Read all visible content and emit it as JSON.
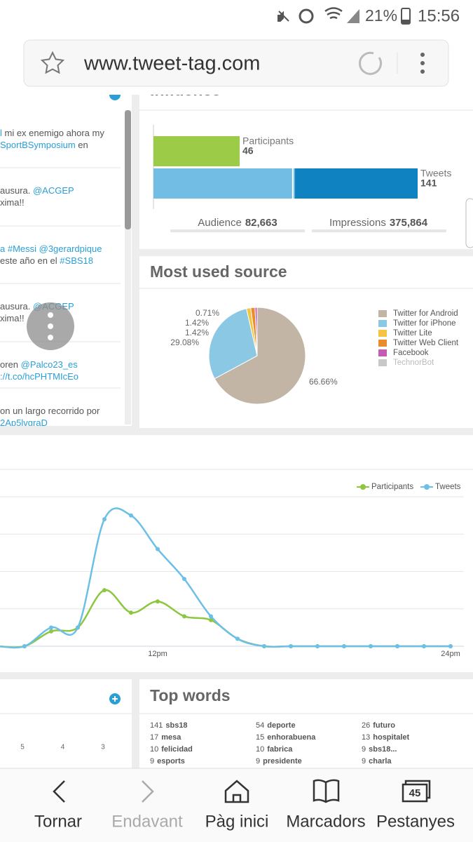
{
  "status_bar": {
    "battery": "21%",
    "time": "15:56"
  },
  "browser": {
    "url": "www.tweet-tag.com"
  },
  "tweets": [
    {
      "lines": [
        [
          "l",
          " mi ex enemigo ahora my"
        ],
        [
          "SportBSymposium",
          " en"
        ]
      ]
    },
    {
      "lines": [
        [
          "ausura. ",
          "@ACGEP"
        ],
        [
          "xima!!"
        ]
      ]
    },
    {
      "lines": [
        [
          "a #Messi @3gerardpique"
        ],
        [
          "este año en el ",
          "#SBS18"
        ]
      ]
    },
    {
      "lines": [
        [
          "ausura. ",
          "@ACGEP"
        ],
        [
          "xima!!"
        ]
      ]
    },
    {
      "lines": [
        [
          "oren ",
          "@Palco23_es"
        ],
        [
          "://t.co/hcPHTMIcEo"
        ]
      ]
    },
    {
      "lines": [
        [
          "on un largo recorrido por"
        ],
        [
          "2Ap5lvgraD"
        ]
      ]
    }
  ],
  "influence": {
    "chart_data": {
      "type": "hbar",
      "title": "Influence",
      "categories": [
        "Participants",
        "Tweets"
      ],
      "values": [
        46,
        141
      ],
      "colors": [
        "#9ccb47",
        "#72bde3"
      ],
      "xlim": [
        0,
        141
      ],
      "tweet_split": [
        74,
        67
      ],
      "tweet_split_colors": [
        "#72bde3",
        "#0f82c1"
      ]
    },
    "audience": {
      "label": "Audience",
      "value": "82,663"
    },
    "impressions": {
      "label": "Impressions",
      "value": "375,864"
    }
  },
  "source": {
    "chart_data": {
      "type": "pie",
      "title": "Most used source",
      "categories": [
        "Twitter for Android",
        "Twitter for iPhone",
        "Twitter Lite",
        "Twitter Web Client",
        "Facebook",
        "TechnorBot"
      ],
      "values": [
        66.66,
        29.08,
        1.42,
        1.42,
        0.71,
        null
      ],
      "value_labels": [
        "66.66%",
        "29.08%",
        "1.42%",
        "1.42%",
        "0.71%",
        null
      ],
      "colors": [
        "#c3b5a6",
        "#8ac8e4",
        "#f4c542",
        "#e98c2d",
        "#c45cb4",
        "#c8c8c8"
      ],
      "hidden": [
        false,
        false,
        false,
        false,
        false,
        true
      ]
    }
  },
  "activity": {
    "chart_data": {
      "type": "line",
      "categories": [
        null,
        null,
        null,
        null,
        null,
        null,
        "12pm",
        null,
        null,
        null,
        null,
        null,
        null,
        null,
        null,
        null,
        null,
        "24pm"
      ],
      "series": [
        {
          "name": "Participants",
          "color": "#8dc63f",
          "values": [
            0,
            0,
            4,
            5,
            15,
            9,
            12,
            8,
            7,
            2,
            0,
            0,
            0,
            0,
            0,
            0,
            0,
            0
          ]
        },
        {
          "name": "Tweets",
          "color": "#6cbfe6",
          "values": [
            0,
            0,
            5,
            5,
            34,
            35,
            26,
            18,
            8,
            2,
            0,
            0,
            0,
            0,
            0,
            0,
            0,
            0
          ]
        }
      ],
      "ylim": [
        0,
        40
      ],
      "yticks": [
        0,
        10,
        20,
        30,
        40
      ],
      "grid": true
    }
  },
  "lower_left": {
    "axis_labels": [
      "5",
      "4",
      "3"
    ]
  },
  "top_words": {
    "title": "Top words",
    "columns": [
      [
        {
          "count": 141,
          "word": "sbs18"
        },
        {
          "count": 17,
          "word": "mesa"
        },
        {
          "count": 10,
          "word": "felicidad"
        },
        {
          "count": 9,
          "word": "esports"
        }
      ],
      [
        {
          "count": 54,
          "word": "deporte"
        },
        {
          "count": 15,
          "word": "enhorabuena"
        },
        {
          "count": 10,
          "word": "fabrica"
        },
        {
          "count": 9,
          "word": "presidente"
        }
      ],
      [
        {
          "count": 26,
          "word": "futuro"
        },
        {
          "count": 13,
          "word": "hospitalet"
        },
        {
          "count": 9,
          "word": "sbs18..."
        },
        {
          "count": 9,
          "word": "charla"
        }
      ]
    ]
  },
  "nav": {
    "items": [
      "Tornar",
      "Endavant",
      "Pàg inici",
      "Marcadors",
      "Pestanyes"
    ],
    "tab_count": "45"
  }
}
